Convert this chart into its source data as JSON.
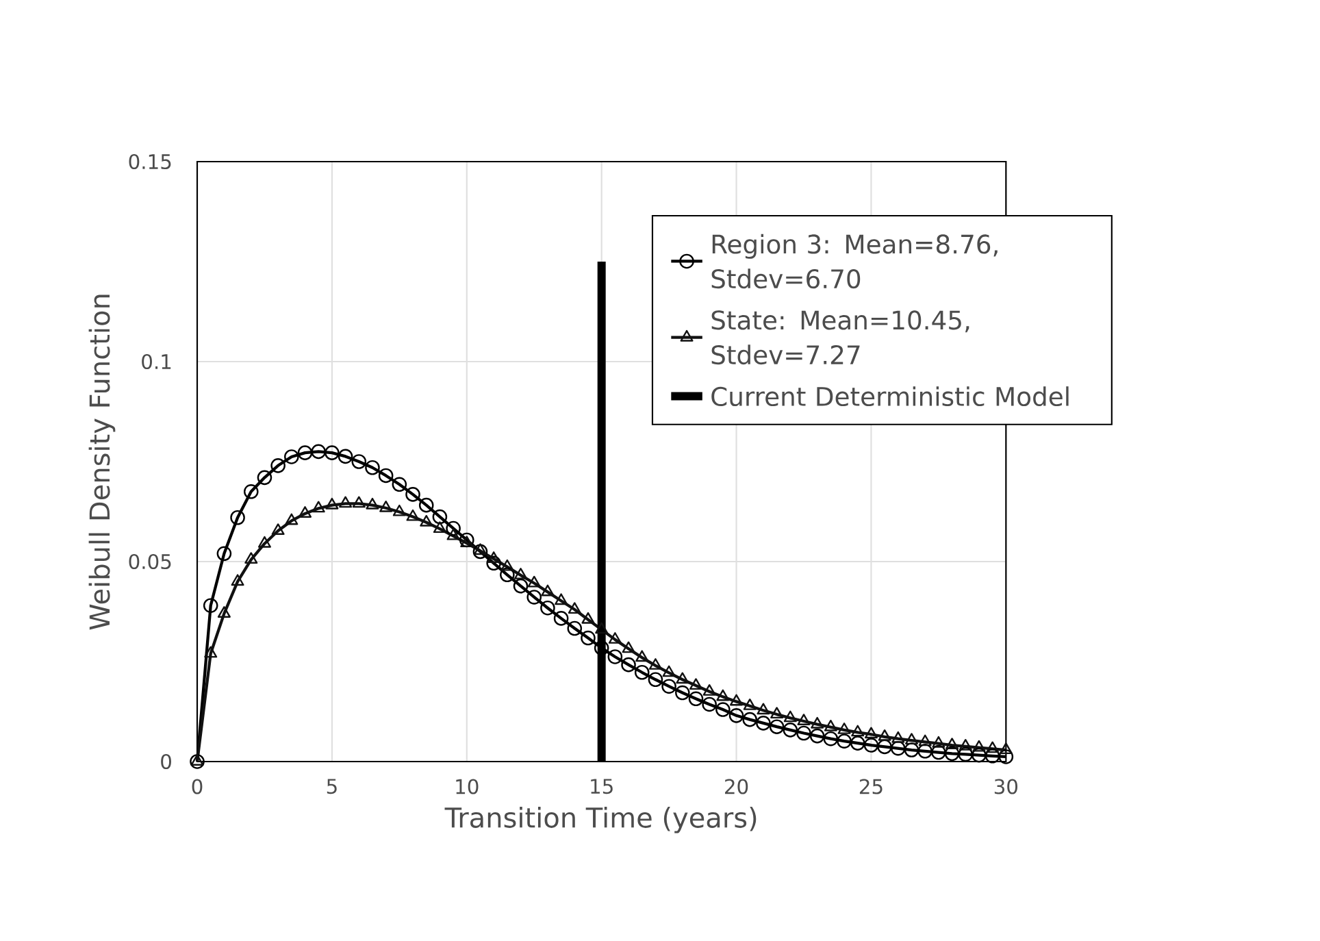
{
  "chart_data": {
    "type": "line",
    "xlabel": "Transition Time (years)",
    "ylabel": "Weibull Density Function",
    "x": [
      0,
      0.5,
      1,
      1.5,
      2,
      2.5,
      3,
      3.5,
      4,
      4.5,
      5,
      5.5,
      6,
      6.5,
      7,
      7.5,
      8,
      8.5,
      9,
      9.5,
      10,
      10.5,
      11,
      11.5,
      12,
      12.5,
      13,
      13.5,
      14,
      14.5,
      15,
      15.5,
      16,
      16.5,
      17,
      17.5,
      18,
      18.5,
      19,
      19.5,
      20,
      20.5,
      21,
      21.5,
      22,
      22.5,
      23,
      23.5,
      24,
      24.5,
      25,
      25.5,
      26,
      26.5,
      27,
      27.5,
      28,
      28.5,
      29,
      29.5,
      30
    ],
    "series": [
      {
        "name": "Region 3: Mean=8.76, Stdev=6.70",
        "color": "#000000",
        "marker": "circle",
        "values": [
          0,
          0.039,
          0.052,
          0.061,
          0.0675,
          0.071,
          0.074,
          0.0762,
          0.0772,
          0.0775,
          0.0772,
          0.0763,
          0.075,
          0.0735,
          0.0715,
          0.0693,
          0.0668,
          0.0641,
          0.0612,
          0.0583,
          0.0554,
          0.0525,
          0.0496,
          0.0467,
          0.0439,
          0.0411,
          0.0384,
          0.0358,
          0.0333,
          0.0309,
          0.0284,
          0.0262,
          0.0242,
          0.0223,
          0.0205,
          0.0188,
          0.0172,
          0.0157,
          0.0143,
          0.013,
          0.0115,
          0.0105,
          0.0096,
          0.0087,
          0.0079,
          0.0071,
          0.0064,
          0.0057,
          0.0051,
          0.0046,
          0.0041,
          0.0037,
          0.0033,
          0.0029,
          0.0026,
          0.0023,
          0.002,
          0.0018,
          0.0016,
          0.0014,
          0.0012
        ]
      },
      {
        "name": "State: Mean=10.45, Stdev=7.27",
        "color": "#111111",
        "marker": "triangle",
        "values": [
          0,
          0.027,
          0.037,
          0.045,
          0.0505,
          0.0545,
          0.0577,
          0.0602,
          0.062,
          0.0633,
          0.0641,
          0.0645,
          0.0645,
          0.0641,
          0.0634,
          0.0624,
          0.0612,
          0.0598,
          0.0582,
          0.0564,
          0.0546,
          0.0527,
          0.0507,
          0.0487,
          0.0466,
          0.0446,
          0.0424,
          0.0402,
          0.038,
          0.0355,
          0.033,
          0.0305,
          0.0282,
          0.026,
          0.024,
          0.0222,
          0.0205,
          0.019,
          0.0175,
          0.0162,
          0.015,
          0.0139,
          0.0128,
          0.0118,
          0.0109,
          0.0101,
          0.0093,
          0.0086,
          0.0079,
          0.0073,
          0.0068,
          0.0062,
          0.0057,
          0.0053,
          0.0049,
          0.0045,
          0.0041,
          0.0038,
          0.0035,
          0.0032,
          0.0029
        ]
      },
      {
        "name": "Current Deterministic Model",
        "color": "#000000",
        "marker": "none",
        "x": [
          15,
          15
        ],
        "values": [
          0,
          0.125
        ]
      }
    ],
    "xlim": [
      0,
      30
    ],
    "xticks": [
      0,
      5,
      10,
      15,
      20,
      25,
      30
    ],
    "ylim": [
      0,
      0.15
    ],
    "yticks": [
      0,
      0.05,
      0.1,
      0.15
    ],
    "grid": true,
    "legend": "top right",
    "line_style": "solid"
  }
}
